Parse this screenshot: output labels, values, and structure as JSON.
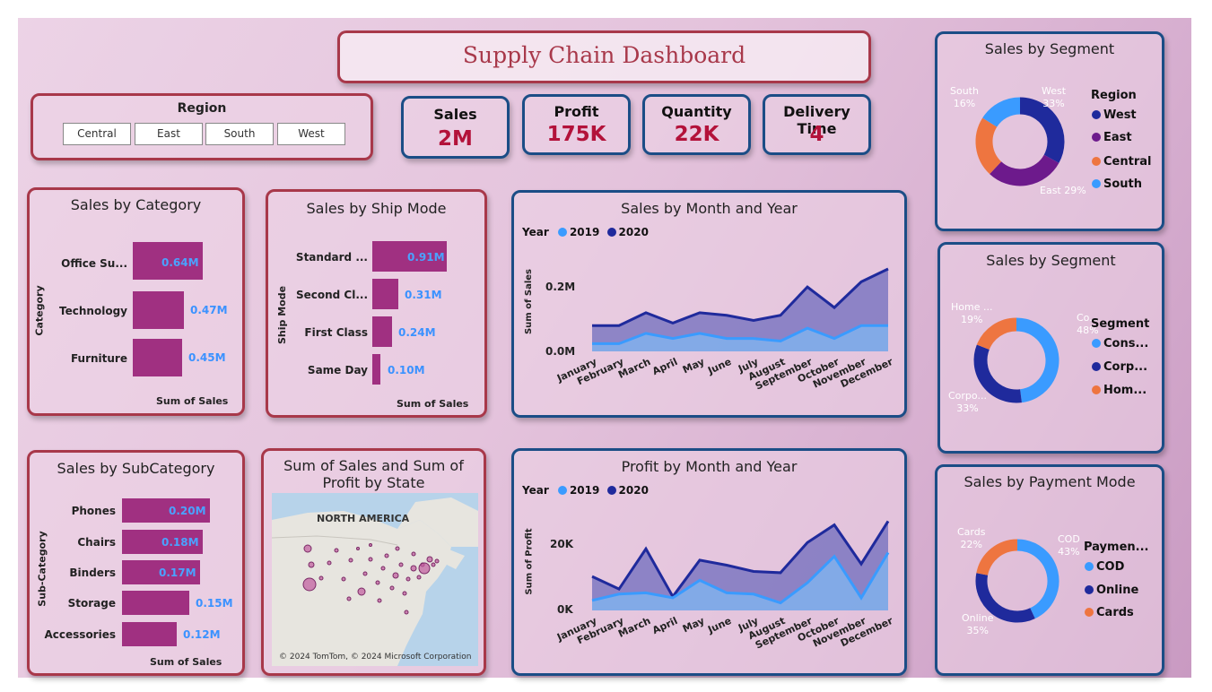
{
  "title": "Supply Chain Dashboard",
  "region_slicer": {
    "title": "Region",
    "options": [
      "Central",
      "East",
      "South",
      "West"
    ]
  },
  "kpis": [
    {
      "title": "Sales",
      "value": "2M"
    },
    {
      "title": "Profit",
      "value": "175K"
    },
    {
      "title": "Quantity",
      "value": "22K"
    },
    {
      "title": "Delivery Time",
      "value": "4"
    }
  ],
  "sales_by_category": {
    "title": "Sales by Category",
    "ylabel": "Category",
    "xlabel": "Sum of Sales",
    "items": [
      {
        "label": "Office Su...",
        "value_label": "0.64M",
        "value": 0.64
      },
      {
        "label": "Technology",
        "value_label": "0.47M",
        "value": 0.47
      },
      {
        "label": "Furniture",
        "value_label": "0.45M",
        "value": 0.45
      }
    ]
  },
  "sales_by_shipmode": {
    "title": "Sales by Ship Mode",
    "ylabel": "Ship Mode",
    "xlabel": "Sum of Sales",
    "items": [
      {
        "label": "Standard ...",
        "value_label": "0.91M",
        "value": 0.91
      },
      {
        "label": "Second Cl...",
        "value_label": "0.31M",
        "value": 0.31
      },
      {
        "label": "First Class",
        "value_label": "0.24M",
        "value": 0.24
      },
      {
        "label": "Same Day",
        "value_label": "0.10M",
        "value": 0.1
      }
    ]
  },
  "sales_by_subcategory": {
    "title": "Sales by SubCategory",
    "ylabel": "Sub-Category",
    "xlabel": "Sum of Sales",
    "items": [
      {
        "label": "Phones",
        "value_label": "0.20M",
        "value": 0.2
      },
      {
        "label": "Chairs",
        "value_label": "0.18M",
        "value": 0.18
      },
      {
        "label": "Binders",
        "value_label": "0.17M",
        "value": 0.17
      },
      {
        "label": "Storage",
        "value_label": "0.15M",
        "value": 0.15
      },
      {
        "label": "Accessories",
        "value_label": "0.12M",
        "value": 0.12
      }
    ]
  },
  "map": {
    "title_line1": "Sum of Sales and Sum of",
    "title_line2": "Profit by State",
    "region_label": "NORTH AMERICA",
    "copyright": "© 2024 TomTom, © 2024 Microsoft Corporation"
  },
  "sales_month_year": {
    "title": "Sales by Month and Year",
    "legend_title": "Year",
    "ylabel": "Sum of Sales",
    "yticks": [
      "0.2M",
      "0.0M"
    ],
    "months": [
      "January",
      "February",
      "March",
      "April",
      "May",
      "June",
      "July",
      "August",
      "September",
      "October",
      "November",
      "December"
    ]
  },
  "profit_month_year": {
    "title": "Profit by Month and Year",
    "legend_title": "Year",
    "ylabel": "Sum of Profit",
    "yticks": [
      "20K",
      "0K"
    ],
    "months": [
      "January",
      "February",
      "March",
      "April",
      "May",
      "June",
      "July",
      "August",
      "September",
      "October",
      "November",
      "December"
    ]
  },
  "donut_region": {
    "title": "Sales by Segment",
    "legend_title": "Region",
    "legend": [
      "West",
      "East",
      "Central",
      "South"
    ],
    "labels": {
      "west": "West",
      "west_pct": "33%",
      "east": "East 29%",
      "south": "South",
      "south_pct": "16%"
    }
  },
  "donut_segment": {
    "title": "Sales by Segment",
    "legend_title": "Segment",
    "legend": [
      "Cons...",
      "Corp...",
      "Hom..."
    ],
    "labels": {
      "cons": "Co...",
      "cons_pct": "48%",
      "corp": "Corpo...",
      "corp_pct": "33%",
      "home": "Home ...",
      "home_pct": "19%"
    }
  },
  "donut_payment": {
    "title": "Sales by Payment Mode",
    "legend_title": "Paymen...",
    "legend": [
      "COD",
      "Online",
      "Cards"
    ],
    "labels": {
      "cod": "COD",
      "cod_pct": "43%",
      "online": "Online",
      "online_pct": "35%",
      "cards": "Cards",
      "cards_pct": "22%"
    }
  },
  "colors": {
    "y2019": "#3a9bff",
    "y2020": "#1f2a9c",
    "bar": "#a03081",
    "west": "#1f2a9c",
    "east": "#6d1a8c",
    "central": "#ee7540",
    "south": "#3a9bff",
    "kpi_value": "#b3123a"
  },
  "chart_data": [
    {
      "type": "bar",
      "title": "Sales by Category",
      "categories": [
        "Office Su...",
        "Technology",
        "Furniture"
      ],
      "values": [
        0.64,
        0.47,
        0.45
      ],
      "xlabel": "Sum of Sales",
      "ylabel": "Category"
    },
    {
      "type": "bar",
      "title": "Sales by Ship Mode",
      "categories": [
        "Standard ...",
        "Second Cl...",
        "First Class",
        "Same Day"
      ],
      "values": [
        0.91,
        0.31,
        0.24,
        0.1
      ],
      "xlabel": "Sum of Sales",
      "ylabel": "Ship Mode"
    },
    {
      "type": "bar",
      "title": "Sales by SubCategory",
      "categories": [
        "Phones",
        "Chairs",
        "Binders",
        "Storage",
        "Accessories"
      ],
      "values": [
        0.2,
        0.18,
        0.17,
        0.15,
        0.12
      ],
      "xlabel": "Sum of Sales",
      "ylabel": "Sub-Category"
    },
    {
      "type": "area",
      "title": "Sales by Month and Year",
      "categories": [
        "January",
        "February",
        "March",
        "April",
        "May",
        "June",
        "July",
        "August",
        "September",
        "October",
        "November",
        "December"
      ],
      "series": [
        {
          "name": "2019",
          "values": [
            0.03,
            0.03,
            0.07,
            0.05,
            0.07,
            0.05,
            0.05,
            0.04,
            0.09,
            0.05,
            0.1,
            0.1
          ]
        },
        {
          "name": "2020",
          "values": [
            0.1,
            0.1,
            0.15,
            0.11,
            0.15,
            0.14,
            0.12,
            0.14,
            0.25,
            0.17,
            0.27,
            0.32
          ]
        }
      ],
      "ylabel": "Sum of Sales",
      "ylim": [
        0,
        0.32
      ]
    },
    {
      "type": "area",
      "title": "Profit by Month and Year",
      "categories": [
        "January",
        "February",
        "March",
        "April",
        "May",
        "June",
        "July",
        "August",
        "September",
        "October",
        "November",
        "December"
      ],
      "series": [
        {
          "name": "2019",
          "values": [
            4000,
            6500,
            7000,
            5000,
            12000,
            7000,
            6500,
            3000,
            11000,
            21500,
            5000,
            23000
          ]
        },
        {
          "name": "2020",
          "values": [
            13500,
            8500,
            24500,
            5500,
            20000,
            18000,
            15500,
            15000,
            27000,
            34000,
            18500,
            35500
          ]
        }
      ],
      "ylabel": "Sum of Profit",
      "ylim": [
        0,
        36000
      ]
    },
    {
      "type": "pie",
      "title": "Sales by Segment",
      "categories": [
        "West",
        "East",
        "Central",
        "South"
      ],
      "values": [
        33,
        29,
        22,
        16
      ]
    },
    {
      "type": "pie",
      "title": "Sales by Segment",
      "categories": [
        "Consumer",
        "Corporate",
        "Home Office"
      ],
      "values": [
        48,
        33,
        19
      ]
    },
    {
      "type": "pie",
      "title": "Sales by Payment Mode",
      "categories": [
        "COD",
        "Online",
        "Cards"
      ],
      "values": [
        43,
        35,
        22
      ]
    }
  ]
}
